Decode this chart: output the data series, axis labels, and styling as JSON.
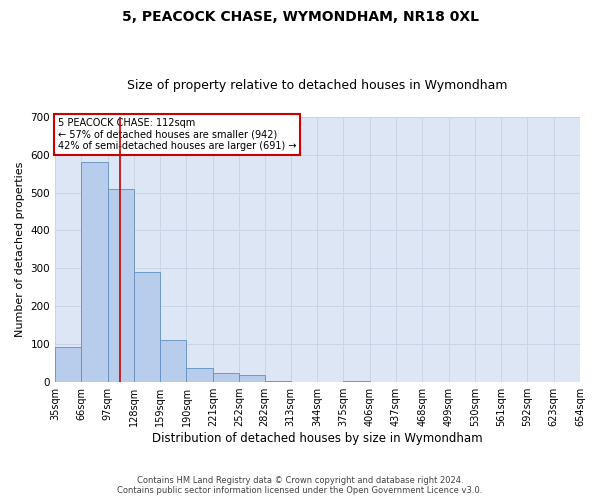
{
  "title": "5, PEACOCK CHASE, WYMONDHAM, NR18 0XL",
  "subtitle": "Size of property relative to detached houses in Wymondham",
  "xlabel": "Distribution of detached houses by size in Wymondham",
  "ylabel": "Number of detached properties",
  "footer_line1": "Contains HM Land Registry data © Crown copyright and database right 2024.",
  "footer_line2": "Contains public sector information licensed under the Open Government Licence v3.0.",
  "annotation_line1": "5 PEACOCK CHASE: 112sqm",
  "annotation_line2": "← 57% of detached houses are smaller (942)",
  "annotation_line3": "42% of semi-detached houses are larger (691) →",
  "property_size_sqm": 112,
  "bar_edges": [
    35,
    66,
    97,
    128,
    159,
    190,
    221,
    252,
    282,
    313,
    344,
    375,
    406,
    437,
    468,
    499,
    530,
    561,
    592,
    623,
    654
  ],
  "bar_values": [
    93,
    580,
    510,
    290,
    110,
    38,
    25,
    18,
    4,
    0,
    0,
    4,
    0,
    0,
    0,
    0,
    0,
    0,
    0,
    0
  ],
  "bar_color": "#b8ccec",
  "bar_edge_color": "#6090c0",
  "grid_color": "#c8d4e8",
  "background_color": "#dce6f4",
  "annotation_box_color": "#ffffff",
  "annotation_border_color": "#cc0000",
  "red_line_color": "#cc0000",
  "ylim": [
    0,
    700
  ],
  "yticks": [
    0,
    100,
    200,
    300,
    400,
    500,
    600,
    700
  ],
  "title_fontsize": 10,
  "subtitle_fontsize": 9,
  "tick_label_fontsize": 7,
  "ylabel_fontsize": 8,
  "xlabel_fontsize": 8.5
}
